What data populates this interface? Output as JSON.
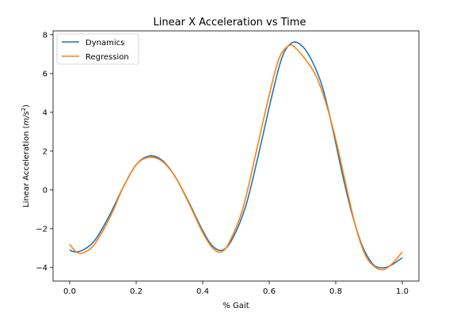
{
  "chart_data": {
    "type": "line",
    "title": "Linear X Acceleration vs Time",
    "xlabel": "% Gait",
    "ylabel_main": "Linear Acceleration (",
    "ylabel_unit": "m/s",
    "ylabel_sup": "2",
    "ylabel_close": ")",
    "xlim": [
      -0.05,
      1.05
    ],
    "ylim": [
      -4.7,
      8.2
    ],
    "xticks": [
      0.0,
      0.2,
      0.4,
      0.6,
      0.8,
      1.0
    ],
    "xtick_labels": [
      "0.0",
      "0.2",
      "0.4",
      "0.6",
      "0.8",
      "1.0"
    ],
    "yticks": [
      -4,
      -2,
      0,
      2,
      4,
      6,
      8
    ],
    "ytick_labels": [
      "−4",
      "−2",
      "0",
      "2",
      "4",
      "6",
      "8"
    ],
    "grid": false,
    "legend_position": "top-left",
    "series": [
      {
        "name": "Dynamics",
        "color": "#1f77b4",
        "x": [
          0.0,
          0.02,
          0.05,
          0.08,
          0.12,
          0.16,
          0.2,
          0.24,
          0.28,
          0.32,
          0.36,
          0.4,
          0.43,
          0.46,
          0.49,
          0.53,
          0.57,
          0.61,
          0.64,
          0.67,
          0.7,
          0.73,
          0.76,
          0.79,
          0.82,
          0.85,
          0.88,
          0.91,
          0.93,
          0.95,
          0.97,
          1.0
        ],
        "y": [
          -3.1,
          -3.2,
          -3.0,
          -2.5,
          -1.3,
          0.1,
          1.3,
          1.75,
          1.5,
          0.6,
          -0.7,
          -2.1,
          -2.9,
          -3.1,
          -2.5,
          -0.8,
          2.0,
          5.0,
          6.9,
          7.6,
          7.4,
          6.6,
          5.3,
          3.2,
          0.8,
          -1.3,
          -2.9,
          -3.8,
          -4.0,
          -4.0,
          -3.85,
          -3.5
        ]
      },
      {
        "name": "Regression",
        "color": "#ff7f0e",
        "x": [
          0.0,
          0.02,
          0.04,
          0.07,
          0.1,
          0.13,
          0.16,
          0.2,
          0.24,
          0.28,
          0.32,
          0.36,
          0.4,
          0.43,
          0.455,
          0.48,
          0.52,
          0.56,
          0.6,
          0.63,
          0.66,
          0.68,
          0.71,
          0.74,
          0.77,
          0.8,
          0.83,
          0.86,
          0.89,
          0.92,
          0.945,
          0.97,
          1.0
        ],
        "y": [
          -2.8,
          -3.2,
          -3.25,
          -2.9,
          -2.1,
          -1.1,
          0.1,
          1.3,
          1.68,
          1.45,
          0.6,
          -0.75,
          -2.2,
          -3.0,
          -3.2,
          -2.7,
          -1.0,
          1.9,
          4.9,
          6.8,
          7.45,
          7.3,
          6.7,
          5.9,
          4.5,
          2.6,
          0.3,
          -1.9,
          -3.4,
          -4.0,
          -4.1,
          -3.8,
          -3.2
        ]
      }
    ]
  }
}
